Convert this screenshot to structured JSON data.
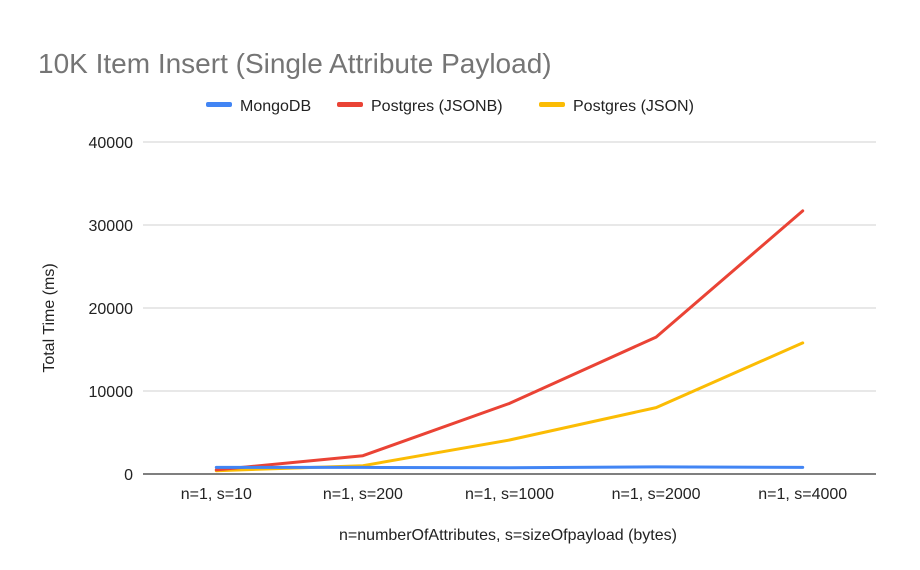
{
  "chart_data": {
    "type": "line",
    "title": "10K Item Insert (Single Attribute Payload)",
    "xlabel": "n=numberOfAttributes, s=sizeOfpayload (bytes)",
    "ylabel": "Total Time (ms)",
    "categories": [
      "n=1, s=10",
      "n=1, s=200",
      "n=1, s=1000",
      "n=1, s=2000",
      "n=1, s=4000"
    ],
    "ylim": [
      0,
      40000
    ],
    "yticks": [
      0,
      10000,
      20000,
      30000,
      40000
    ],
    "grid": true,
    "legend_position": "top",
    "series": [
      {
        "name": "MongoDB",
        "color": "#4285f4",
        "values": [
          800,
          800,
          750,
          850,
          800
        ]
      },
      {
        "name": "Postgres (JSONB)",
        "color": "#ea4335",
        "values": [
          500,
          2200,
          8500,
          16500,
          31700
        ]
      },
      {
        "name": "Postgres (JSON)",
        "color": "#fbbc04",
        "values": [
          400,
          1000,
          4100,
          8000,
          15800
        ]
      }
    ]
  }
}
